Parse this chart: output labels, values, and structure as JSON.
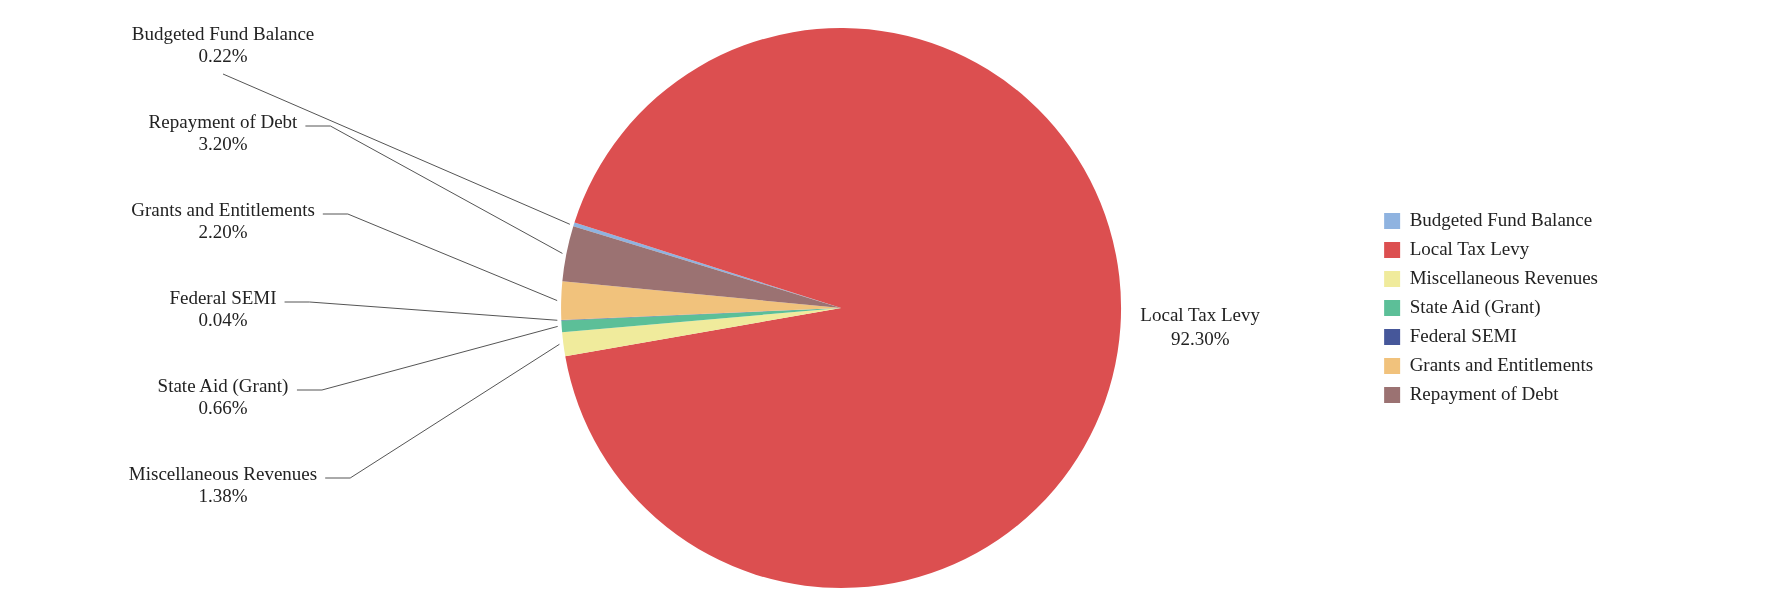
{
  "chart_data": {
    "type": "pie",
    "categories": [
      "Budgeted Fund Balance",
      "Local Tax Levy",
      "Miscellaneous Revenues",
      "State Aid (Grant)",
      "Federal SEMI",
      "Grants and Entitlements",
      "Repayment of Debt"
    ],
    "values": [
      0.22,
      92.3,
      1.38,
      0.66,
      0.04,
      2.2,
      3.2
    ],
    "value_labels": [
      "0.22%",
      "92.30%",
      "1.38%",
      "0.66%",
      "0.04%",
      "2.20%",
      "3.20%"
    ],
    "colors": [
      "#8fb3e0",
      "#dc4f50",
      "#f0eb9c",
      "#5cbf98",
      "#46579a",
      "#f1c27c",
      "#9b7272"
    ],
    "legend": "right"
  }
}
